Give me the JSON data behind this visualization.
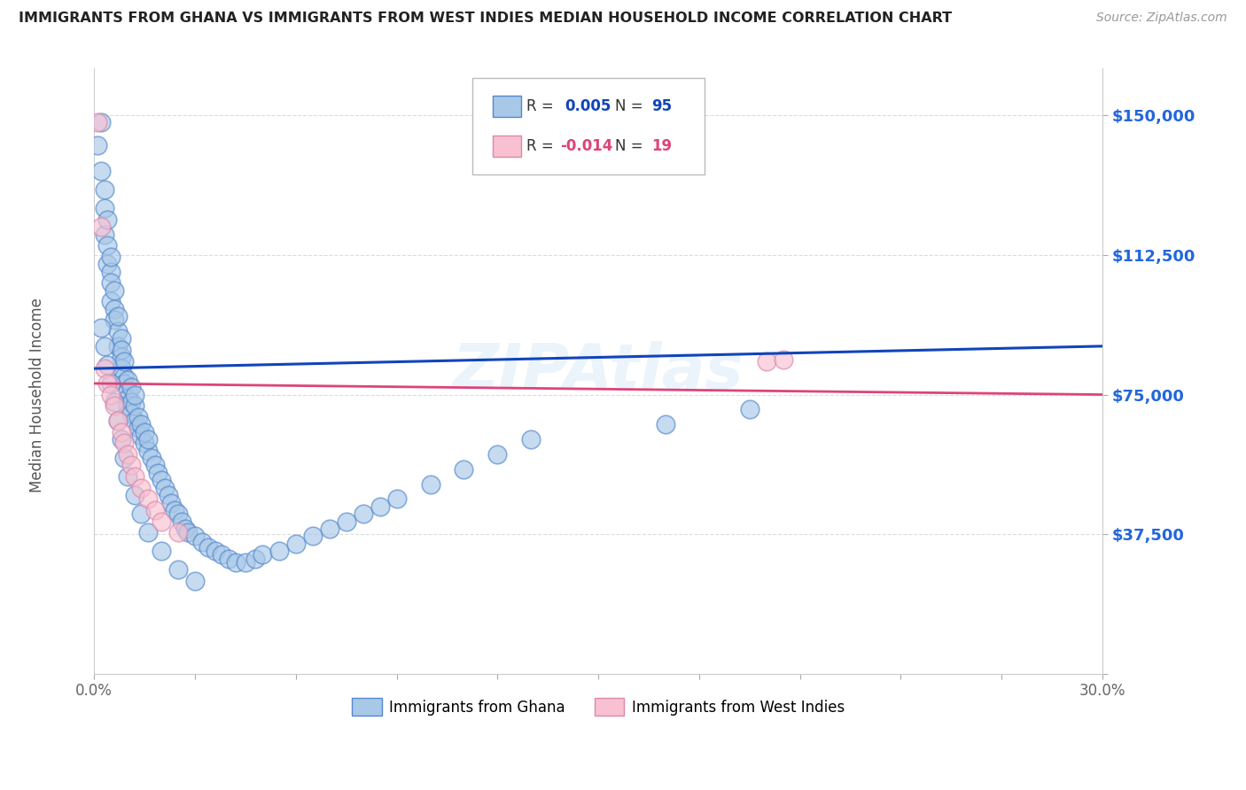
{
  "title": "IMMIGRANTS FROM GHANA VS IMMIGRANTS FROM WEST INDIES MEDIAN HOUSEHOLD INCOME CORRELATION CHART",
  "source": "Source: ZipAtlas.com",
  "ylabel": "Median Household Income",
  "xlim": [
    0.0,
    0.3
  ],
  "ylim": [
    0,
    162500
  ],
  "ytick_vals": [
    0,
    37500,
    75000,
    112500,
    150000
  ],
  "ytick_labels": [
    "",
    "$37,500",
    "$75,000",
    "$112,500",
    "$150,000"
  ],
  "xtick_vals": [
    0.0,
    0.03,
    0.06,
    0.09,
    0.12,
    0.15,
    0.18,
    0.21,
    0.24,
    0.27,
    0.3
  ],
  "xtick_labels": [
    "0.0%",
    "",
    "",
    "",
    "",
    "",
    "",
    "",
    "",
    "",
    "30.0%"
  ],
  "blue_face": "#a8c8e8",
  "blue_edge": "#5588cc",
  "blue_line": "#1144bb",
  "pink_face": "#f8c0d0",
  "pink_edge": "#dd88aa",
  "pink_line": "#dd4477",
  "R_blue": 0.005,
  "N_blue": 95,
  "R_pink": -0.014,
  "N_pink": 19,
  "label_blue": "Immigrants from Ghana",
  "label_pink": "Immigrants from West Indies",
  "watermark": "ZIPAtlas",
  "bg_color": "#ffffff",
  "grid_color": "#cccccc",
  "title_color": "#222222",
  "ylabel_color": "#555555",
  "ytick_color": "#2266dd",
  "xtick_color": "#666666",
  "blue_x": [
    0.001,
    0.002,
    0.002,
    0.003,
    0.003,
    0.003,
    0.004,
    0.004,
    0.004,
    0.005,
    0.005,
    0.005,
    0.005,
    0.006,
    0.006,
    0.006,
    0.007,
    0.007,
    0.007,
    0.008,
    0.008,
    0.008,
    0.008,
    0.009,
    0.009,
    0.009,
    0.01,
    0.01,
    0.01,
    0.01,
    0.011,
    0.011,
    0.011,
    0.012,
    0.012,
    0.012,
    0.013,
    0.013,
    0.014,
    0.014,
    0.015,
    0.015,
    0.016,
    0.016,
    0.017,
    0.018,
    0.019,
    0.02,
    0.021,
    0.022,
    0.023,
    0.024,
    0.025,
    0.026,
    0.027,
    0.028,
    0.03,
    0.032,
    0.034,
    0.036,
    0.038,
    0.04,
    0.042,
    0.045,
    0.048,
    0.05,
    0.055,
    0.06,
    0.065,
    0.07,
    0.075,
    0.08,
    0.085,
    0.09,
    0.1,
    0.11,
    0.12,
    0.13,
    0.17,
    0.195,
    0.002,
    0.003,
    0.004,
    0.005,
    0.006,
    0.007,
    0.008,
    0.009,
    0.01,
    0.012,
    0.014,
    0.016,
    0.02,
    0.025,
    0.03
  ],
  "blue_y": [
    142000,
    148000,
    135000,
    130000,
    125000,
    118000,
    122000,
    115000,
    110000,
    108000,
    105000,
    100000,
    112000,
    98000,
    95000,
    103000,
    92000,
    88000,
    96000,
    85000,
    90000,
    82000,
    87000,
    80000,
    84000,
    78000,
    76000,
    79000,
    74000,
    72000,
    77000,
    73000,
    70000,
    68000,
    72000,
    75000,
    66000,
    69000,
    64000,
    67000,
    62000,
    65000,
    60000,
    63000,
    58000,
    56000,
    54000,
    52000,
    50000,
    48000,
    46000,
    44000,
    43000,
    41000,
    39000,
    38000,
    37000,
    35500,
    34000,
    33000,
    32000,
    31000,
    30000,
    30000,
    31000,
    32000,
    33000,
    35000,
    37000,
    39000,
    41000,
    43000,
    45000,
    47000,
    51000,
    55000,
    59000,
    63000,
    67000,
    71000,
    93000,
    88000,
    83000,
    78000,
    73000,
    68000,
    63000,
    58000,
    53000,
    48000,
    43000,
    38000,
    33000,
    28000,
    25000
  ],
  "pink_x": [
    0.001,
    0.002,
    0.003,
    0.004,
    0.005,
    0.006,
    0.007,
    0.008,
    0.009,
    0.01,
    0.011,
    0.012,
    0.014,
    0.016,
    0.018,
    0.02,
    0.025,
    0.2,
    0.205
  ],
  "pink_y": [
    148000,
    120000,
    82000,
    78000,
    75000,
    72000,
    68000,
    65000,
    62000,
    59000,
    56000,
    53000,
    50000,
    47000,
    44000,
    41000,
    38000,
    84000,
    84500
  ]
}
